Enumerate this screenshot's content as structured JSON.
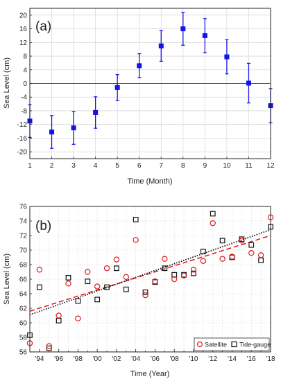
{
  "colors": {
    "panel_a_marker": "#1414e6",
    "satellite": "#e01a1a",
    "tide_gauge": "#111111",
    "grid": "#d9d9d9",
    "zero_line": "#555555"
  },
  "chart_data": [
    {
      "type": "scatter",
      "panel_label": "(a)",
      "xlabel": "Time (Month)",
      "ylabel": "Sea Level (cm)",
      "xlim": [
        1,
        12
      ],
      "ylim": [
        -22,
        22
      ],
      "x_ticks": [
        "1",
        "2",
        "3",
        "4",
        "5",
        "6",
        "7",
        "8",
        "9",
        "10",
        "11",
        "12"
      ],
      "y_ticks": [
        "-20",
        "-16",
        "-12",
        "-8",
        "-4",
        "0",
        "4",
        "8",
        "12",
        "16",
        "20"
      ],
      "grid": true,
      "reference_line_y": 0,
      "series": [
        {
          "marker": "filled-square",
          "error_bars": true,
          "x": [
            1,
            2,
            3,
            4,
            5,
            6,
            7,
            8,
            9,
            10,
            11,
            12
          ],
          "y": [
            -11,
            -14.2,
            -13,
            -8.5,
            -1.2,
            5.2,
            11,
            16,
            14,
            7.8,
            0.1,
            -6.5
          ],
          "err": [
            4.8,
            4.8,
            4.8,
            4.6,
            3.8,
            3.5,
            4.5,
            4.8,
            5.0,
            5.0,
            5.8,
            5.0
          ]
        }
      ]
    },
    {
      "type": "scatter",
      "panel_label": "(b)",
      "xlabel": "Time (Year)",
      "ylabel": "Sea Level (cm)",
      "xlim": [
        1993,
        2018
      ],
      "ylim": [
        56,
        76
      ],
      "x_ticks": [
        "'94",
        "'96",
        "'98",
        "'00",
        "'02",
        "'04",
        "'06",
        "'08",
        "'10",
        "'12",
        "'14",
        "'16",
        "'18"
      ],
      "x_tick_values": [
        1994,
        1996,
        1998,
        2000,
        2002,
        2004,
        2006,
        2008,
        2010,
        2012,
        2014,
        2016,
        2018
      ],
      "y_ticks": [
        "56",
        "58",
        "60",
        "62",
        "64",
        "66",
        "68",
        "70",
        "72",
        "74",
        "76"
      ],
      "grid": true,
      "legend_position": "bottom-right",
      "series": [
        {
          "name": "Satellite",
          "marker": "open-circle",
          "x": [
            1993,
            1994,
            1995,
            1996,
            1997,
            1998,
            1999,
            2000,
            2001,
            2002,
            2003,
            2004,
            2005,
            2006,
            2007,
            2008,
            2009,
            2010,
            2011,
            2012,
            2013,
            2014,
            2015,
            2016,
            2017,
            2018
          ],
          "y": [
            57.2,
            67.3,
            56.8,
            61,
            65.4,
            60.6,
            67,
            65,
            67.5,
            68.7,
            66.3,
            71.4,
            63.8,
            65.7,
            68.8,
            66,
            66.5,
            67.3,
            68.5,
            73.7,
            68.8,
            69.1,
            71.3,
            69.6,
            69.3,
            74.5
          ],
          "trend": {
            "x": [
              1993,
              2018
            ],
            "y": [
              61.6,
              72.0
            ],
            "style": "dashed"
          }
        },
        {
          "name": "Tide-gauge",
          "marker": "open-square",
          "x": [
            1993,
            1994,
            1995,
            1996,
            1997,
            1998,
            1999,
            2000,
            2001,
            2002,
            2003,
            2004,
            2005,
            2006,
            2007,
            2008,
            2009,
            2010,
            2011,
            2012,
            2013,
            2014,
            2015,
            2016,
            2017,
            2018
          ],
          "y": [
            58.3,
            64.9,
            56.5,
            60.3,
            66.2,
            63,
            65.7,
            63.2,
            64.9,
            67.5,
            64.6,
            74.2,
            64.2,
            65.6,
            67.5,
            66.6,
            66.6,
            66.8,
            69.8,
            75,
            71.3,
            69,
            71.5,
            70.7,
            68.6,
            73.2
          ],
          "trend": {
            "x": [
              1993,
              2018
            ],
            "y": [
              61.1,
              72.8
            ],
            "style": "dotted"
          }
        }
      ]
    }
  ]
}
